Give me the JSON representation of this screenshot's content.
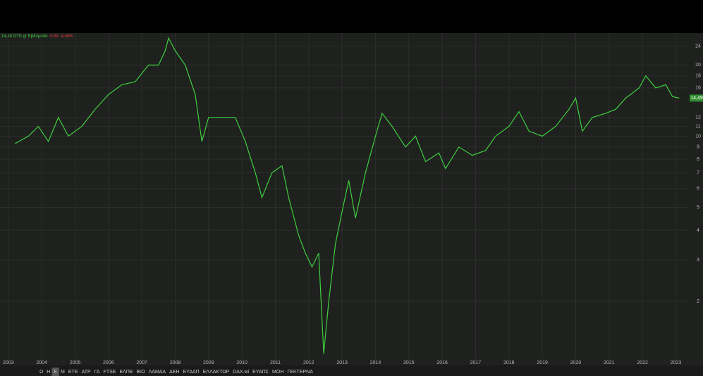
{
  "chart_data": {
    "type": "line",
    "legend": {
      "last": "14,49",
      "symbol": "OTE.gr",
      "interval": "Εβδομάδα",
      "change": "-0,68 -4,48%"
    },
    "price_tag": "14,49",
    "log_scale": true,
    "grid": true,
    "color": "#3ecf3e",
    "x": [
      2003.2,
      2003.6,
      2003.9,
      2004.2,
      2004.5,
      2004.8,
      2005.2,
      2005.6,
      2006.0,
      2006.4,
      2006.8,
      2007.2,
      2007.5,
      2007.7,
      2007.8,
      2008.0,
      2008.3,
      2008.6,
      2008.8,
      2009.0,
      2009.4,
      2009.8,
      2010.1,
      2010.4,
      2010.6,
      2010.9,
      2011.2,
      2011.4,
      2011.7,
      2011.9,
      2012.1,
      2012.3,
      2012.45,
      2012.6,
      2012.8,
      2013.0,
      2013.2,
      2013.4,
      2013.7,
      2014.0,
      2014.2,
      2014.5,
      2014.9,
      2015.2,
      2015.5,
      2015.9,
      2016.1,
      2016.5,
      2016.9,
      2017.3,
      2017.6,
      2018.0,
      2018.3,
      2018.6,
      2019.0,
      2019.4,
      2019.8,
      2020.0,
      2020.2,
      2020.5,
      2020.9,
      2021.2,
      2021.5,
      2021.9,
      2022.1,
      2022.4,
      2022.7,
      2022.9,
      2023.1
    ],
    "values": [
      9.3,
      10,
      11,
      9.5,
      12,
      10,
      11,
      13,
      15,
      16.5,
      17,
      20,
      20,
      23,
      26,
      23,
      20,
      15,
      9.5,
      12,
      12,
      12,
      9.5,
      7,
      5.5,
      7,
      7.5,
      5.5,
      3.8,
      3.2,
      2.8,
      3.2,
      1.2,
      2.0,
      3.5,
      4.8,
      6.5,
      4.5,
      7,
      10,
      12.5,
      11,
      9,
      10,
      7.8,
      8.5,
      7.3,
      9,
      8.3,
      8.7,
      10,
      11,
      12.7,
      10.5,
      10,
      11,
      13,
      14.5,
      10.5,
      12,
      12.5,
      13,
      14.5,
      16,
      18,
      16,
      16.5,
      14.7,
      14.49
    ],
    "xlim": [
      2002.75,
      2023.35
    ],
    "ylim": [
      1.14,
      27.3
    ],
    "xticks": [
      2003,
      2004,
      2005,
      2006,
      2007,
      2008,
      2009,
      2010,
      2011,
      2012,
      2013,
      2014,
      2015,
      2016,
      2017,
      2018,
      2019,
      2020,
      2021,
      2022,
      2023
    ],
    "yticks": [
      2,
      3,
      4,
      5,
      6,
      7,
      8,
      9,
      10,
      11,
      12,
      16,
      18,
      20,
      24
    ],
    "toolbar": [
      "Ω",
      "Η",
      "Ε",
      "Μ",
      "ΕΤΕ",
      "ΔΤΡ",
      "ΓΔ",
      "FTSE",
      "ΕΛΠΕ",
      "ΒΙΟ",
      "ΛΑΜΔΑ",
      "ΔΕΗ",
      "ΕΥΔΑΠ",
      "ΕΛΛΑΚΤΩΡ",
      "DAX.wi",
      "ΕΥΑΠΣ",
      "ΜΟΗ",
      "ΓΕΚΤΕΡΝΑ"
    ]
  }
}
